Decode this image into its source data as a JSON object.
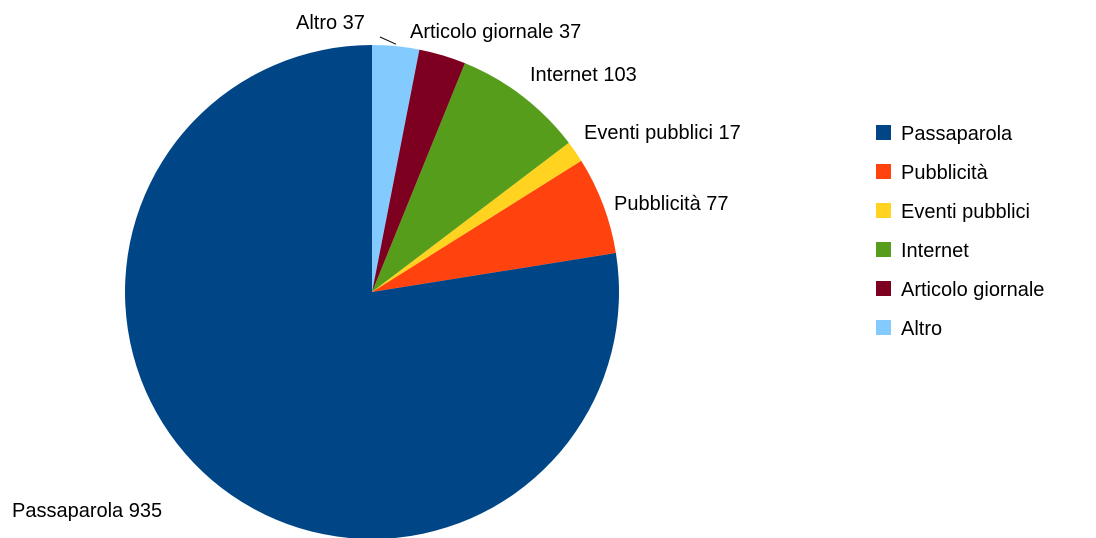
{
  "chart_data": {
    "type": "pie",
    "slices": [
      {
        "name": "Passaparola",
        "value": 935,
        "label": "Passaparola 935",
        "color": "#004586"
      },
      {
        "name": "Pubblicità",
        "value": 77,
        "label": "Pubblicità 77",
        "color": "#ff420e"
      },
      {
        "name": "Eventi pubblici",
        "value": 17,
        "label": "Eventi pubblici 17",
        "color": "#ffd320"
      },
      {
        "name": "Internet",
        "value": 103,
        "label": "Internet 103",
        "color": "#579d1c"
      },
      {
        "name": "Articolo giornale",
        "value": 37,
        "label": "Articolo giornale 37",
        "color": "#7e0021"
      },
      {
        "name": "Altro",
        "value": 37,
        "label": "Altro 37",
        "color": "#83caff"
      }
    ],
    "legend_position": "right",
    "legend": [
      "Passaparola",
      "Pubblicità",
      "Eventi pubblici",
      "Internet",
      "Articolo giornale",
      "Altro"
    ]
  }
}
